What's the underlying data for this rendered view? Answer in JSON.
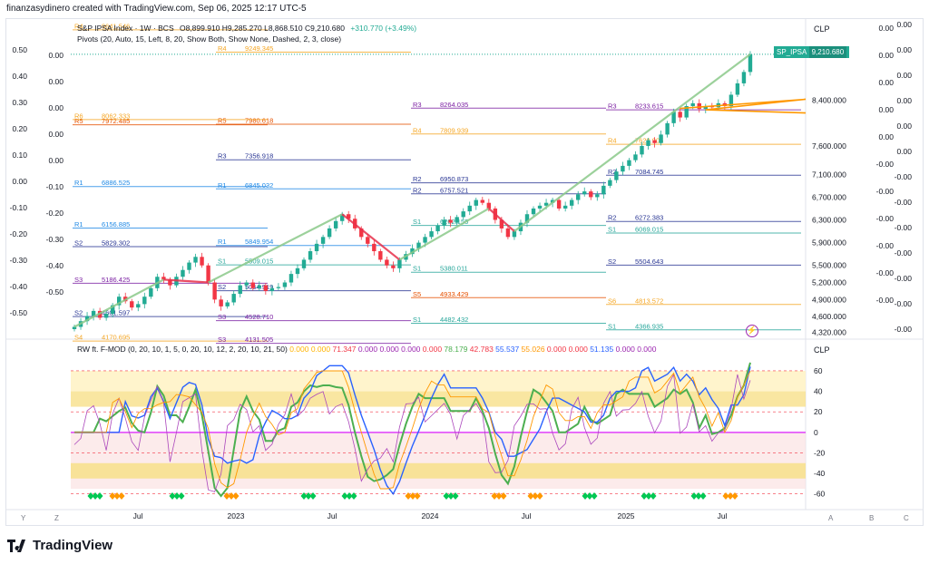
{
  "header": {
    "text": "finanzasydinero created with TradingView.com, Sep 06, 2025 12:17 UTC-5"
  },
  "legend": {
    "main": "S&P IPSA Index · 1W · BCS",
    "ohlc": "O8,899.910  H9,285.270  L8,868.510  C9,210.680",
    "change": "+310.770 (+3.49%)",
    "pivots": "Pivots (20, Auto, 15, Left, 8, 20, Show Both, Show None, Dashed, 2, 3, close)",
    "oscillator_name": "RW ft. F-MOD (0, 20, 10, 1, 5, 0, 20, 10, 12, 2, 20, 10, 21, 50)",
    "oscillator_values": [
      "0.000",
      "0.000",
      "71.347",
      "0.000",
      "0.000",
      "0.000",
      "0.000",
      "78.179",
      "42.783",
      "55.537",
      "55.026",
      "0.000",
      "0.000",
      "51.135",
      "0.000",
      "0.000"
    ]
  },
  "currency_label": "CLP",
  "last_price": {
    "symbol": "SP_IPSA",
    "value": "9,210.680"
  },
  "colors": {
    "up": "#22ab94",
    "down": "#f23645",
    "channel": "#8bc98a",
    "pivot_r": "#9c27b0",
    "pivot_s": "#2962ff",
    "accent_orange": "#ff9800"
  },
  "brand": "TradingView",
  "corner_buttons": [
    "Y",
    "Z",
    "A",
    "B",
    "C"
  ],
  "chart_data": [
    {
      "type": "candlestick",
      "title": "S&P IPSA Index",
      "timeframe": "1W",
      "x_ticks": [
        "Jul",
        "2023",
        "Jul",
        "2024",
        "Jul",
        "2025",
        "Jul"
      ],
      "y_ticks": [
        "8,400.000",
        "7,600.000",
        "7,100.000",
        "6,700.000",
        "6,300.000",
        "5,900.000",
        "5,500.000",
        "5,200.000",
        "4,900.000",
        "4,600.000",
        "4,320.000"
      ],
      "left_scale_ticks": [
        "0.50",
        "0.40",
        "0.30",
        "0.20",
        "0.10",
        "0.00",
        "-0.10",
        "-0.20",
        "-0.30",
        "-0.40",
        "-0.50"
      ],
      "left_scale2_ticks": [
        "0.00",
        "0.00",
        "0.00",
        "0.00",
        "0.00",
        "-0.10",
        "-0.20",
        "-0.30",
        "-0.40",
        "-0.50"
      ],
      "right_scale1_ticks": [
        "0.00",
        "0.00",
        "0.00",
        "0.00",
        "0.00",
        "-0.00",
        "-0.00",
        "-0.00",
        "-0.00",
        "-0.00",
        "-0.00"
      ],
      "right_scale2_ticks": [
        "0.00",
        "0.00",
        "0.00",
        "0.00",
        "0.00",
        "0.00",
        "-0.00",
        "-0.00",
        "-0.00",
        "-0.00",
        "-0.00",
        "-0.00",
        "-0.00"
      ],
      "ylim": [
        4300,
        9400
      ],
      "closes": [
        4420,
        4520,
        4610,
        4700,
        4580,
        4650,
        4800,
        4950,
        4870,
        4760,
        4820,
        4950,
        5100,
        5300,
        5250,
        5150,
        5300,
        5420,
        5550,
        5650,
        5500,
        5200,
        4900,
        4780,
        4850,
        5000,
        5150,
        5200,
        5100,
        5150,
        5050,
        5100,
        5120,
        5200,
        5350,
        5450,
        5600,
        5750,
        5880,
        6000,
        6150,
        6280,
        6400,
        6320,
        6150,
        6000,
        5880,
        5750,
        5600,
        5500,
        5450,
        5600,
        5700,
        5800,
        5900,
        6000,
        6100,
        6200,
        6300,
        6250,
        6350,
        6450,
        6550,
        6650,
        6600,
        6500,
        6300,
        6150,
        6000,
        6100,
        6250,
        6400,
        6500,
        6550,
        6600,
        6650,
        6500,
        6550,
        6650,
        6750,
        6800,
        6700,
        6750,
        6900,
        7000,
        7150,
        7250,
        7350,
        7450,
        7600,
        7700,
        7650,
        7800,
        8000,
        8200,
        8100,
        8300,
        8350,
        8250,
        8300,
        8280,
        8350,
        8300,
        8500,
        8700,
        8900,
        9210.68
      ],
      "pivots": [
        {
          "label": "R4",
          "value": "9641.546",
          "color": "#f5a623"
        },
        {
          "label": "R4",
          "value": "9249.345",
          "color": "#f5a623"
        },
        {
          "label": "R3",
          "value": "8264.035",
          "color": "#7b1fa2"
        },
        {
          "label": "R3",
          "value": "8233.615",
          "color": "#7b1fa2"
        },
        {
          "label": "R5",
          "value": "7972.485",
          "color": "#e65100"
        },
        {
          "label": "R5",
          "value": "7980.618",
          "color": "#e65100"
        },
        {
          "label": "R4",
          "value": "7809.939",
          "color": "#f5a623"
        },
        {
          "label": "R4",
          "value": "7629.905",
          "color": "#f5a623"
        },
        {
          "label": "R6",
          "value": "8062.333",
          "color": "#f5a623"
        },
        {
          "label": "R3",
          "value": "7356.918",
          "color": "#283593"
        },
        {
          "label": "R2",
          "value": "6950.873",
          "color": "#283593"
        },
        {
          "label": "R2",
          "value": "7084.745",
          "color": "#283593"
        },
        {
          "label": "R1",
          "value": "6886.525",
          "color": "#1e88e5"
        },
        {
          "label": "R1",
          "value": "6845.032",
          "color": "#1e88e5"
        },
        {
          "label": "R2",
          "value": "6757.521",
          "color": "#283593"
        },
        {
          "label": "R2",
          "value": "6272.383",
          "color": "#283593"
        },
        {
          "label": "R1",
          "value": "6156.885",
          "color": "#1e88e5"
        },
        {
          "label": "R1",
          "value": "5849.954",
          "color": "#1e88e5"
        },
        {
          "label": "S1",
          "value": "6202.155",
          "color": "#26a69a"
        },
        {
          "label": "S1",
          "value": "6069.015",
          "color": "#26a69a"
        },
        {
          "label": "S2",
          "value": "5829.302",
          "color": "#283593"
        },
        {
          "label": "S1",
          "value": "5509.015",
          "color": "#26a69a"
        },
        {
          "label": "S1",
          "value": "5380.011",
          "color": "#26a69a"
        },
        {
          "label": "S2",
          "value": "5504.643",
          "color": "#283593"
        },
        {
          "label": "S3",
          "value": "5186.425",
          "color": "#7b1fa2"
        },
        {
          "label": "S2",
          "value": "5054.919",
          "color": "#283593"
        },
        {
          "label": "S5",
          "value": "4933.429",
          "color": "#e65100"
        },
        {
          "label": "S6",
          "value": "4813.572",
          "color": "#f5a623"
        },
        {
          "label": "S2",
          "value": "4601.597",
          "color": "#283593"
        },
        {
          "label": "S3",
          "value": "4528.710",
          "color": "#7b1fa2"
        },
        {
          "label": "S1",
          "value": "4482.432",
          "color": "#26a69a"
        },
        {
          "label": "S1",
          "value": "4366.935",
          "color": "#26a69a"
        },
        {
          "label": "S4",
          "value": "4170.695",
          "color": "#f5a623"
        },
        {
          "label": "S3",
          "value": "4131.505",
          "color": "#7b1fa2"
        }
      ]
    },
    {
      "type": "line",
      "title": "RW ft. F-MOD",
      "y_ticks": [
        "60",
        "40",
        "20",
        "0",
        "-20",
        "-40",
        "-60"
      ],
      "ylim": [
        -70,
        75
      ]
    }
  ]
}
